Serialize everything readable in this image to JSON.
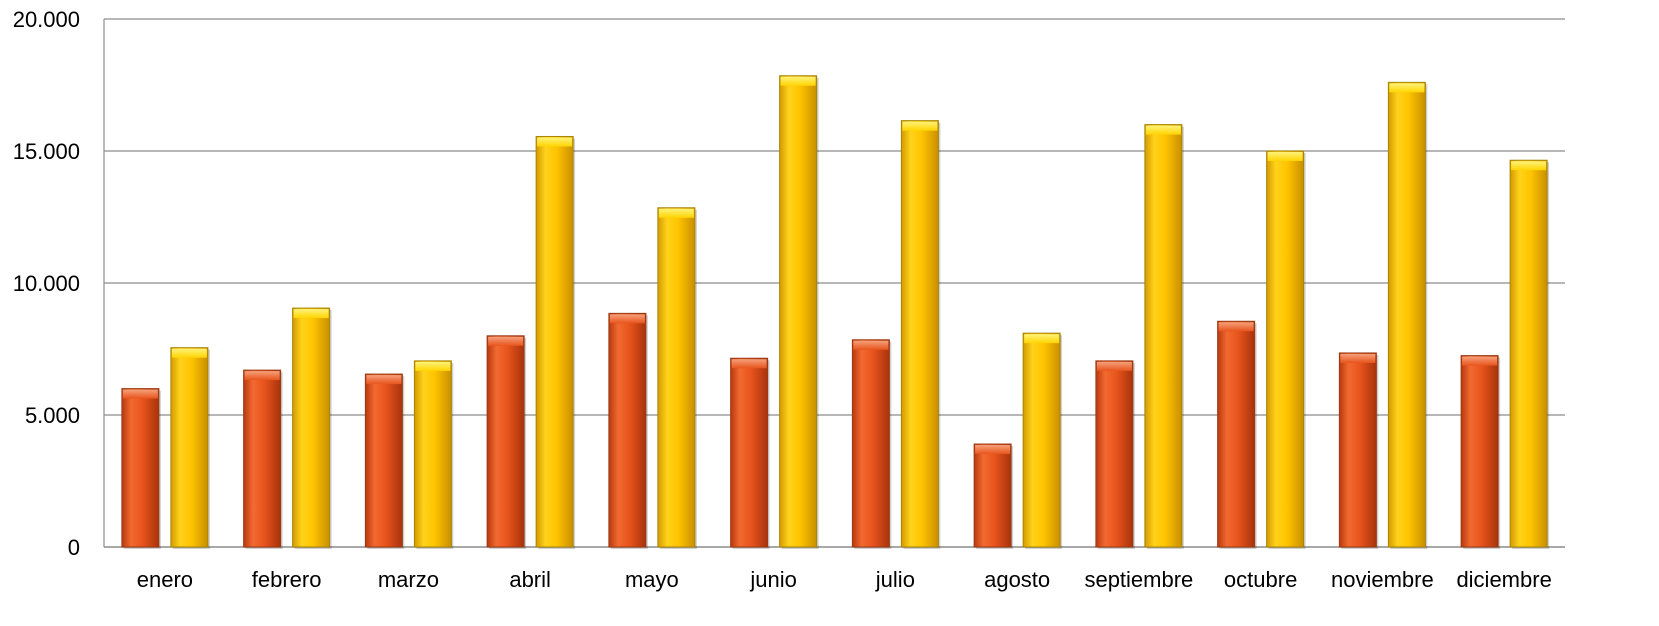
{
  "chart_data": {
    "type": "bar",
    "categories": [
      "enero",
      "febrero",
      "marzo",
      "abril",
      "mayo",
      "junio",
      "julio",
      "agosto",
      "septiembre",
      "octubre",
      "noviembre",
      "diciembre"
    ],
    "series": [
      {
        "values": [
          6000,
          6700,
          6550,
          8000,
          8850,
          7150,
          7850,
          3900,
          7050,
          8550,
          7350,
          7250
        ],
        "color": "#e8541c"
      },
      {
        "values": [
          7550,
          9050,
          7050,
          15550,
          12850,
          17850,
          16150,
          8100,
          16000,
          15000,
          17600,
          14650
        ],
        "color": "#ffc400"
      }
    ],
    "ylim": [
      0,
      20000
    ],
    "yticks": [
      0,
      5000,
      10000,
      15000,
      20000
    ],
    "ytick_labels": [
      "0",
      "5.000",
      "10.000",
      "15.000",
      "20.000"
    ],
    "grid": true,
    "legend": "none"
  }
}
